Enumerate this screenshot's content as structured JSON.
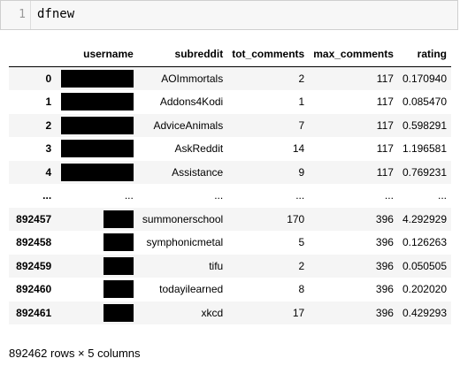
{
  "cell": {
    "line_number": "1",
    "code": "dfnew"
  },
  "table": {
    "columns": [
      "",
      "username",
      "subreddit",
      "tot_comments",
      "max_comments",
      "rating"
    ],
    "rows": [
      {
        "index": "0",
        "username_redacted": "wide",
        "subreddit": "AOImmortals",
        "tot_comments": "2",
        "max_comments": "117",
        "rating": "0.170940"
      },
      {
        "index": "1",
        "username_redacted": "wide",
        "subreddit": "Addons4Kodi",
        "tot_comments": "1",
        "max_comments": "117",
        "rating": "0.085470"
      },
      {
        "index": "2",
        "username_redacted": "wide",
        "subreddit": "AdviceAnimals",
        "tot_comments": "7",
        "max_comments": "117",
        "rating": "0.598291"
      },
      {
        "index": "3",
        "username_redacted": "wide",
        "subreddit": "AskReddit",
        "tot_comments": "14",
        "max_comments": "117",
        "rating": "1.196581"
      },
      {
        "index": "4",
        "username_redacted": "wide",
        "subreddit": "Assistance",
        "tot_comments": "9",
        "max_comments": "117",
        "rating": "0.769231"
      },
      {
        "index": "...",
        "username": "...",
        "subreddit": "...",
        "tot_comments": "...",
        "max_comments": "...",
        "rating": "..."
      },
      {
        "index": "892457",
        "username_redacted": "narrow",
        "subreddit": "summonerschool",
        "tot_comments": "170",
        "max_comments": "396",
        "rating": "4.292929"
      },
      {
        "index": "892458",
        "username_redacted": "narrow",
        "subreddit": "symphonicmetal",
        "tot_comments": "5",
        "max_comments": "396",
        "rating": "0.126263"
      },
      {
        "index": "892459",
        "username_redacted": "narrow",
        "subreddit": "tifu",
        "tot_comments": "2",
        "max_comments": "396",
        "rating": "0.050505"
      },
      {
        "index": "892460",
        "username_redacted": "narrow",
        "subreddit": "todayilearned",
        "tot_comments": "8",
        "max_comments": "396",
        "rating": "0.202020"
      },
      {
        "index": "892461",
        "username_redacted": "narrow",
        "subreddit": "xkcd",
        "tot_comments": "17",
        "max_comments": "396",
        "rating": "0.429293"
      }
    ]
  },
  "shape_text": "892462 rows × 5 columns"
}
